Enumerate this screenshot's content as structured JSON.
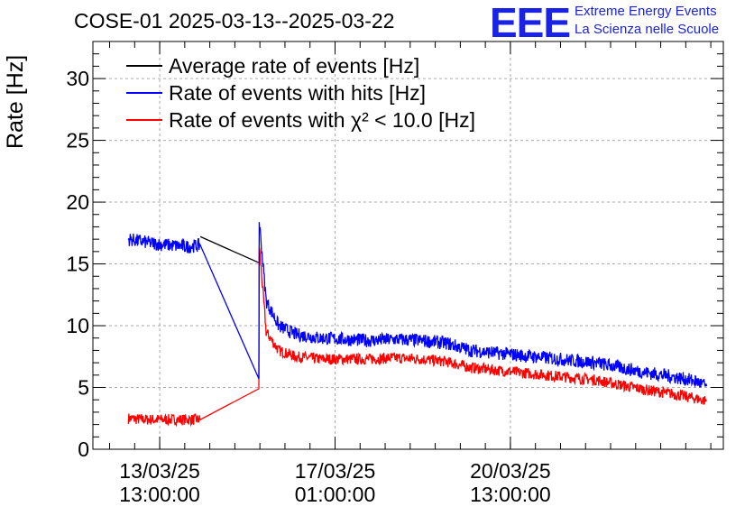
{
  "chart_data": {
    "type": "line",
    "title": "COSE-01 2025-03-13--2025-03-22",
    "ylabel": "Rate [Hz]",
    "xlabel": "",
    "ylim": [
      0,
      33
    ],
    "yticks": [
      0,
      5,
      10,
      15,
      20,
      25,
      30
    ],
    "xlim": [
      "2025-03-12 05:00",
      "2025-03-24 19:00"
    ],
    "xticks": [
      {
        "date": "2025-03-13 13:00",
        "label_top": "13/03/25",
        "label_bottom": "13:00:00"
      },
      {
        "date": "2025-03-17 01:00",
        "label_top": "17/03/25",
        "label_bottom": "01:00:00"
      },
      {
        "date": "2025-03-20 13:00",
        "label_top": "20/03/25",
        "label_bottom": "13:00:00"
      }
    ],
    "grid": true,
    "legend_position": "top-left",
    "series": [
      {
        "name": "Average rate of events [Hz]",
        "color": "#000000",
        "x": [
          "2025-03-14 08:30",
          "2025-03-15 12:30"
        ],
        "y": [
          17.2,
          15.1
        ]
      },
      {
        "name": "Rate of events with hits [Hz]",
        "color": "#0000ff",
        "x": [
          "2025-03-12 22:00",
          "2025-03-13 05:00",
          "2025-03-13 12:00",
          "2025-03-13 19:00",
          "2025-03-14 02:00",
          "2025-03-14 08:30",
          "2025-03-15 12:30",
          "2025-03-15 12:40",
          "2025-03-15 16:00",
          "2025-03-15 22:00",
          "2025-03-16 06:00",
          "2025-03-16 18:00",
          "2025-03-17 06:00",
          "2025-03-17 18:00",
          "2025-03-18 06:00",
          "2025-03-18 18:00",
          "2025-03-19 06:00",
          "2025-03-19 18:00",
          "2025-03-20 06:00",
          "2025-03-20 18:00",
          "2025-03-21 06:00",
          "2025-03-21 18:00",
          "2025-03-22 06:00",
          "2025-03-22 18:00",
          "2025-03-23 06:00",
          "2025-03-23 18:00",
          "2025-03-24 06:00",
          "2025-03-24 11:00"
        ],
        "y": [
          17.0,
          16.8,
          16.6,
          16.5,
          16.4,
          16.5,
          5.7,
          18.5,
          12.0,
          10.0,
          9.3,
          9.0,
          8.9,
          8.8,
          8.9,
          8.8,
          8.6,
          8.0,
          7.8,
          7.6,
          7.4,
          7.2,
          7.0,
          6.6,
          6.2,
          5.9,
          5.5,
          5.1
        ]
      },
      {
        "name": "Rate of events with χ² < 10.0 [Hz]",
        "color": "#ff0000",
        "x": [
          "2025-03-12 22:00",
          "2025-03-13 05:00",
          "2025-03-13 12:00",
          "2025-03-13 19:00",
          "2025-03-14 02:00",
          "2025-03-14 08:30",
          "2025-03-15 12:30",
          "2025-03-15 12:40",
          "2025-03-15 16:00",
          "2025-03-15 22:00",
          "2025-03-16 06:00",
          "2025-03-16 18:00",
          "2025-03-17 06:00",
          "2025-03-17 18:00",
          "2025-03-18 06:00",
          "2025-03-18 18:00",
          "2025-03-19 06:00",
          "2025-03-19 18:00",
          "2025-03-20 06:00",
          "2025-03-20 18:00",
          "2025-03-21 06:00",
          "2025-03-21 18:00",
          "2025-03-22 06:00",
          "2025-03-22 18:00",
          "2025-03-23 06:00",
          "2025-03-23 18:00",
          "2025-03-24 06:00",
          "2025-03-24 11:00"
        ],
        "y": [
          2.5,
          2.4,
          2.4,
          2.4,
          2.4,
          2.4,
          4.9,
          16.5,
          9.5,
          8.0,
          7.5,
          7.3,
          7.3,
          7.3,
          7.4,
          7.3,
          7.1,
          6.6,
          6.4,
          6.2,
          6.0,
          5.8,
          5.6,
          5.2,
          4.8,
          4.5,
          4.1,
          3.9
        ]
      }
    ]
  },
  "title": "COSE-01 2025-03-13--2025-03-22",
  "logo": {
    "mark": "EEE",
    "line1": "Extreme Energy Events",
    "line2": "La Scienza nelle Scuole"
  }
}
